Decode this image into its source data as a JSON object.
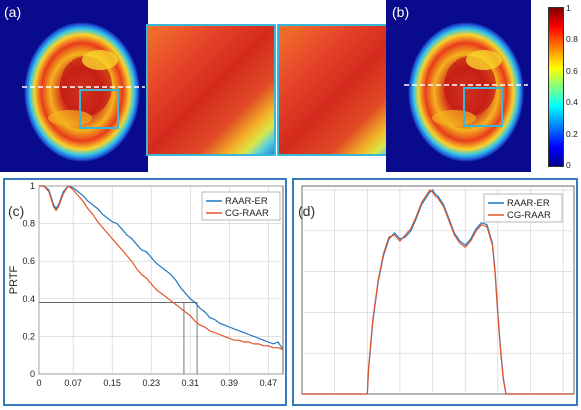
{
  "colors": {
    "series_1": "#1f77c4",
    "series_2": "#e0562a",
    "frame": "#3a7bbf",
    "inset_border": "#39b7d8",
    "map_background": "#0a0a8c"
  },
  "panels": {
    "a": "(a)",
    "b": "(b)",
    "c": "(c)",
    "d": "(d)"
  },
  "colorbar": {
    "colormap": "jet",
    "ticks": [
      "1",
      "0.8",
      "0.6",
      "0.4",
      "0.2",
      "0"
    ]
  },
  "chart_data": [
    {
      "type": "line",
      "panel": "(c)",
      "xlabel": "",
      "ylabel": "PRTF",
      "xlim": [
        0,
        0.5
      ],
      "ylim": [
        0,
        1
      ],
      "xticks": [
        "0",
        "0.07",
        "0.15",
        "0.23",
        "0.31",
        "0.39",
        "0.47"
      ],
      "yticks": [
        "0",
        "0.2",
        "0.4",
        "0.6",
        "0.8",
        "1"
      ],
      "grid": true,
      "legend": "top-right",
      "series": [
        {
          "name": "RAAR-ER",
          "color": "#1f77c4",
          "x": [
            0,
            0.01,
            0.02,
            0.03,
            0.035,
            0.04,
            0.05,
            0.06,
            0.07,
            0.08,
            0.09,
            0.1,
            0.11,
            0.12,
            0.13,
            0.14,
            0.15,
            0.16,
            0.17,
            0.18,
            0.19,
            0.2,
            0.21,
            0.22,
            0.23,
            0.24,
            0.25,
            0.26,
            0.27,
            0.28,
            0.29,
            0.3,
            0.31,
            0.32,
            0.33,
            0.34,
            0.35,
            0.36,
            0.37,
            0.38,
            0.39,
            0.4,
            0.41,
            0.42,
            0.43,
            0.44,
            0.45,
            0.46,
            0.47,
            0.48,
            0.49,
            0.5
          ],
          "y": [
            1,
            1,
            0.98,
            0.9,
            0.88,
            0.9,
            0.97,
            1,
            0.99,
            0.97,
            0.95,
            0.92,
            0.9,
            0.88,
            0.85,
            0.83,
            0.81,
            0.8,
            0.77,
            0.74,
            0.72,
            0.69,
            0.66,
            0.65,
            0.62,
            0.59,
            0.57,
            0.55,
            0.53,
            0.5,
            0.46,
            0.43,
            0.4,
            0.38,
            0.35,
            0.33,
            0.3,
            0.29,
            0.27,
            0.26,
            0.25,
            0.24,
            0.23,
            0.22,
            0.21,
            0.2,
            0.19,
            0.18,
            0.17,
            0.16,
            0.17,
            0.13
          ]
        },
        {
          "name": "CG-RAAR",
          "color": "#e0562a",
          "x": [
            0,
            0.01,
            0.02,
            0.03,
            0.035,
            0.04,
            0.05,
            0.06,
            0.07,
            0.08,
            0.09,
            0.1,
            0.11,
            0.12,
            0.13,
            0.14,
            0.15,
            0.16,
            0.17,
            0.18,
            0.19,
            0.2,
            0.21,
            0.22,
            0.23,
            0.24,
            0.25,
            0.26,
            0.27,
            0.28,
            0.29,
            0.3,
            0.31,
            0.32,
            0.33,
            0.34,
            0.35,
            0.36,
            0.37,
            0.38,
            0.39,
            0.4,
            0.41,
            0.42,
            0.43,
            0.44,
            0.45,
            0.46,
            0.47,
            0.48,
            0.49,
            0.5
          ],
          "y": [
            1,
            1,
            0.97,
            0.89,
            0.87,
            0.89,
            0.96,
            1,
            0.98,
            0.95,
            0.92,
            0.88,
            0.85,
            0.81,
            0.78,
            0.75,
            0.72,
            0.69,
            0.66,
            0.63,
            0.6,
            0.56,
            0.53,
            0.51,
            0.48,
            0.45,
            0.43,
            0.41,
            0.39,
            0.37,
            0.35,
            0.33,
            0.31,
            0.28,
            0.26,
            0.25,
            0.23,
            0.22,
            0.21,
            0.2,
            0.19,
            0.18,
            0.18,
            0.17,
            0.17,
            0.16,
            0.16,
            0.15,
            0.15,
            0.14,
            0.14,
            0.13
          ]
        }
      ],
      "annotations": {
        "threshold_y": 0.38,
        "intercepts_x": [
          0.297,
          0.324
        ]
      }
    },
    {
      "type": "line",
      "panel": "(d)",
      "xlabel": "",
      "ylabel": "",
      "xlim": [
        0,
        100
      ],
      "ylim": [
        0,
        1.02
      ],
      "grid": true,
      "legend": "top-right",
      "series": [
        {
          "name": "RAAR-ER",
          "color": "#1f77c4",
          "x": [
            0,
            24,
            24.5,
            25,
            26,
            28,
            30,
            32,
            34,
            36,
            38,
            40,
            42,
            44,
            46,
            47,
            48,
            49,
            50,
            52,
            54,
            56,
            58,
            60,
            62,
            64,
            66,
            68,
            70,
            71,
            72,
            73,
            74,
            75,
            76,
            100
          ],
          "y": [
            0,
            0,
            0.12,
            0.2,
            0.35,
            0.55,
            0.68,
            0.76,
            0.79,
            0.76,
            0.77,
            0.8,
            0.86,
            0.93,
            0.97,
            0.99,
            1,
            0.98,
            0.97,
            0.93,
            0.86,
            0.79,
            0.75,
            0.73,
            0.76,
            0.81,
            0.84,
            0.83,
            0.74,
            0.6,
            0.4,
            0.22,
            0.08,
            0,
            0,
            0
          ]
        },
        {
          "name": "CG-RAAR",
          "color": "#e0562a",
          "x": [
            0,
            24,
            24.5,
            25,
            26,
            28,
            30,
            32,
            34,
            36,
            38,
            40,
            42,
            44,
            46,
            47,
            48,
            49,
            50,
            52,
            54,
            56,
            58,
            60,
            62,
            64,
            66,
            68,
            70,
            71,
            72,
            73,
            74,
            75,
            76,
            100
          ],
          "y": [
            0,
            0,
            0.13,
            0.21,
            0.36,
            0.56,
            0.69,
            0.77,
            0.78,
            0.75,
            0.78,
            0.81,
            0.87,
            0.94,
            0.98,
            1,
            0.99,
            0.97,
            0.96,
            0.92,
            0.85,
            0.78,
            0.74,
            0.72,
            0.75,
            0.8,
            0.83,
            0.82,
            0.73,
            0.59,
            0.39,
            0.21,
            0.07,
            0,
            0,
            0
          ]
        }
      ]
    }
  ]
}
